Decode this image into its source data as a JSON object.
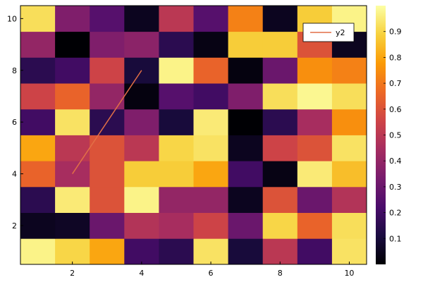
{
  "chart_data": {
    "type": "heatmap",
    "title": "",
    "xlabel": "",
    "ylabel": "",
    "x": [
      1,
      2,
      3,
      4,
      5,
      6,
      7,
      8,
      9,
      10
    ],
    "y": [
      1,
      2,
      3,
      4,
      5,
      6,
      7,
      8,
      9,
      10
    ],
    "xlim": [
      0.5,
      10.5
    ],
    "ylim": [
      0.5,
      10.5
    ],
    "x_ticks": [
      "2",
      "4",
      "6",
      "8",
      "10"
    ],
    "y_ticks": [
      "2",
      "4",
      "6",
      "8",
      "10"
    ],
    "colormap": "inferno",
    "colormap_stops": [
      "#000004",
      "#1b0c41",
      "#4a0c6b",
      "#781c6d",
      "#a52c60",
      "#cf4446",
      "#ed6925",
      "#fb9b06",
      "#f7d13d",
      "#fcffa4"
    ],
    "color_range": [
      0,
      1
    ],
    "colorbar_ticks": [
      "0.1",
      "0.2",
      "0.3",
      "0.4",
      "0.5",
      "0.6",
      "0.7",
      "0.8",
      "0.9"
    ],
    "grid": false,
    "legend_position": "top-right",
    "z": [
      [
        0.97,
        0.9,
        0.8,
        0.2,
        0.15,
        0.93,
        0.1,
        0.5,
        0.2,
        0.93
      ],
      [
        0.05,
        0.06,
        0.3,
        0.48,
        0.45,
        0.55,
        0.3,
        0.9,
        0.65,
        0.92
      ],
      [
        0.15,
        0.95,
        0.6,
        0.97,
        0.4,
        0.4,
        0.05,
        0.6,
        0.3,
        0.48
      ],
      [
        0.65,
        0.45,
        0.6,
        0.88,
        0.88,
        0.8,
        0.2,
        0.03,
        0.95,
        0.85
      ],
      [
        0.8,
        0.5,
        0.6,
        0.5,
        0.9,
        0.93,
        0.05,
        0.55,
        0.6,
        0.93
      ],
      [
        0.2,
        0.93,
        0.15,
        0.35,
        0.1,
        0.95,
        0.0,
        0.15,
        0.45,
        0.75
      ],
      [
        0.55,
        0.65,
        0.4,
        0.02,
        0.25,
        0.2,
        0.35,
        0.92,
        0.98,
        0.92
      ],
      [
        0.15,
        0.2,
        0.55,
        0.1,
        0.97,
        0.65,
        0.02,
        0.3,
        0.75,
        0.72
      ],
      [
        0.4,
        0.0,
        0.35,
        0.38,
        0.15,
        0.03,
        0.88,
        0.88,
        0.6,
        0.05
      ],
      [
        0.92,
        0.35,
        0.25,
        0.05,
        0.5,
        0.25,
        0.72,
        0.05,
        0.88,
        0.97
      ]
    ],
    "overlay_series": {
      "name": "y2",
      "type": "line",
      "color": "#e26f46",
      "x": [
        2,
        4
      ],
      "y": [
        4,
        8
      ]
    }
  }
}
